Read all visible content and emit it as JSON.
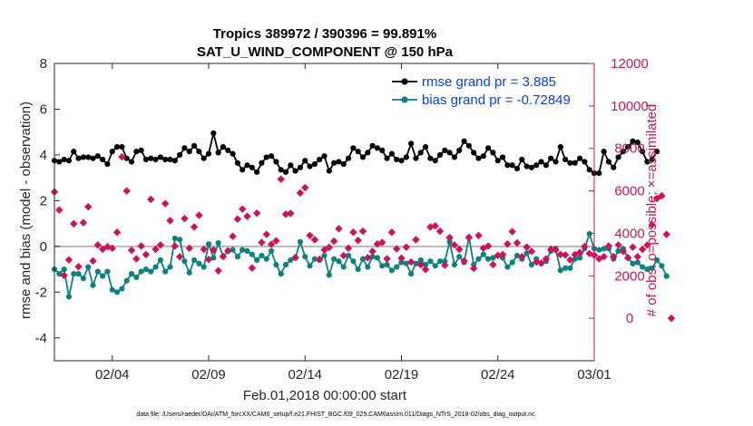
{
  "chart_data": {
    "type": "line",
    "title": "Tropics 389972 / 390396 = 99.891%",
    "subtitle": "SAT_U_WIND_COMPONENT @ 150 hPa",
    "xlabel": "Feb.01,2018 00:00:00 start",
    "ylabel_left": "rmse and bias (model - observation)",
    "ylabel_right": "# of obs: o=possible; ×=assimilated",
    "footnote": "data file: /Users/raeder/DAI/ATM_forcXX/CAM6_setup/f.e21.FHIST_BGC.f09_025.CAM6assim.011/Diags_NTrS_2018-02/obs_diag_output.nc",
    "x_range": [
      1.0,
      29.0
    ],
    "ylim_left": [
      -5,
      8
    ],
    "ylim_right": [
      -2000,
      12000
    ],
    "x_ticks": [
      {
        "value": 4,
        "label": "02/04"
      },
      {
        "value": 9,
        "label": "02/09"
      },
      {
        "value": 14,
        "label": "02/14"
      },
      {
        "value": 19,
        "label": "02/19"
      },
      {
        "value": 24,
        "label": "02/24"
      },
      {
        "value": 29,
        "label": "03/01"
      }
    ],
    "y_ticks_left": [
      8,
      6,
      4,
      2,
      0,
      -2,
      -4
    ],
    "y_ticks_right": [
      12000,
      10000,
      8000,
      6000,
      4000,
      2000,
      0
    ],
    "legend": [
      {
        "label": "rmse grand pr = 3.885",
        "color": "#000000",
        "marker": "circle"
      },
      {
        "label": "bias grand pr = -0.72849",
        "color": "#0d8080",
        "marker": "circle"
      }
    ],
    "series": [
      {
        "name": "rmse",
        "axis": "left",
        "color": "#000000",
        "marker": "circle",
        "x_start": 1.0,
        "x_step": 0.25,
        "values": [
          3.75,
          3.7,
          3.8,
          3.75,
          4.15,
          3.85,
          3.9,
          3.9,
          3.85,
          3.95,
          3.8,
          3.6,
          4.15,
          4.35,
          4.35,
          3.85,
          3.7,
          4.15,
          4.2,
          3.8,
          3.85,
          3.8,
          3.9,
          3.8,
          3.8,
          3.75,
          4.0,
          4.3,
          4.15,
          4.4,
          4.15,
          3.85,
          4.05,
          4.95,
          4.1,
          4.35,
          4.2,
          4.05,
          3.65,
          3.35,
          3.55,
          3.45,
          3.25,
          3.65,
          3.9,
          3.95,
          3.7,
          3.35,
          3.25,
          3.55,
          3.3,
          3.45,
          3.75,
          3.5,
          3.6,
          3.8,
          3.95,
          3.3,
          3.65,
          3.7,
          3.6,
          3.85,
          4.3,
          4.15,
          3.9,
          4.1,
          4.4,
          4.3,
          4.2,
          3.85,
          4.05,
          3.8,
          3.75,
          3.9,
          4.5,
          3.85,
          4.1,
          4.35,
          3.85,
          3.75,
          4.0,
          4.2,
          4.1,
          3.9,
          4.2,
          4.6,
          4.4,
          4.1,
          3.85,
          3.95,
          4.3,
          4.1,
          3.75,
          3.9,
          3.55,
          3.55,
          3.4,
          3.8,
          3.5,
          3.45,
          3.55,
          3.7,
          3.55,
          3.85,
          3.7,
          4.35,
          3.8,
          3.65,
          3.65,
          3.85,
          3.7,
          3.35,
          3.2,
          3.2,
          4.15,
          3.7,
          3.45,
          3.9,
          4.15,
          4.35,
          4.6,
          4.55,
          4.15,
          3.7,
          3.8,
          4.15
        ]
      },
      {
        "name": "bias",
        "axis": "left",
        "color": "#0d8080",
        "marker": "circle",
        "x_start": 1.0,
        "x_step": 0.25,
        "values": [
          -1.0,
          -1.2,
          -1.0,
          -2.2,
          -1.2,
          -1.2,
          -1.4,
          -0.9,
          -1.7,
          -1.1,
          -1.3,
          -1.1,
          -1.9,
          -2.0,
          -1.85,
          -1.5,
          -1.2,
          -1.35,
          -1.1,
          -1.0,
          -1.1,
          -0.9,
          -0.6,
          -1.1,
          -0.9,
          0.35,
          0.3,
          -0.65,
          -1.15,
          -0.6,
          -0.75,
          -0.9,
          0.1,
          -0.5,
          0.15,
          -0.45,
          -0.2,
          -0.15,
          -0.45,
          -0.15,
          -0.2,
          -0.35,
          -0.6,
          -0.4,
          -0.55,
          -0.2,
          -0.8,
          -1.2,
          -0.8,
          -0.6,
          -0.5,
          0.2,
          -0.45,
          -0.85,
          -0.55,
          -0.6,
          -0.4,
          -1.25,
          -0.55,
          -0.65,
          -0.9,
          -0.4,
          -0.65,
          -1.0,
          -0.55,
          -0.9,
          -0.45,
          -0.5,
          -0.85,
          -0.8,
          -1.05,
          -0.9,
          -0.7,
          -0.75,
          -1.2,
          -0.75,
          -0.6,
          -0.8,
          -0.65,
          -0.85,
          -0.65,
          -0.65,
          0.2,
          -0.8,
          -0.45,
          -0.7,
          0.4,
          -0.8,
          -0.55,
          -0.35,
          -0.55,
          -0.5,
          -0.4,
          -0.5,
          -0.9,
          -0.7,
          -0.4,
          -0.55,
          -0.3,
          -0.8,
          -0.55,
          -0.75,
          -0.65,
          -0.2,
          -0.1,
          -1.05,
          -0.95,
          -0.95,
          -0.55,
          -0.5,
          -0.1,
          0.55,
          -0.1,
          -0.15,
          -0.1,
          -0.1,
          -0.55,
          -0.2,
          -0.1,
          -0.5,
          -0.75,
          -0.7,
          -0.9,
          -1.0,
          -0.95,
          -0.6,
          -0.85,
          -1.3
        ]
      },
      {
        "name": "obs count",
        "axis": "right",
        "color": "#d0105a",
        "marker": "diamond",
        "x_start": 1.0,
        "x_step": 0.25,
        "values": [
          5950,
          5100,
          2020,
          2750,
          4450,
          2430,
          4500,
          5250,
          2700,
          3450,
          3250,
          3370,
          3300,
          4050,
          7600,
          6000,
          3200,
          2800,
          3400,
          3000,
          5600,
          3250,
          3450,
          5400,
          4600,
          3400,
          2900,
          4700,
          3300,
          4300,
          4850,
          3250,
          2770,
          3220,
          2240,
          2910,
          3180,
          3860,
          4670,
          5140,
          4800,
          2370,
          4950,
          3570,
          3950,
          3480,
          3650,
          6550,
          4900,
          4940,
          2860,
          5900,
          6150,
          3900,
          3700,
          2780,
          3220,
          3340,
          3630,
          4220,
          2950,
          3300,
          4050,
          3670,
          4100,
          2850,
          3150,
          3500,
          3570,
          2800,
          4050,
          3270,
          2830,
          3350,
          2650,
          3700,
          2520,
          2300,
          4300,
          4350,
          4100,
          2500,
          3800,
          3450,
          3250,
          2700,
          3800,
          2350,
          3900,
          3300,
          3400,
          2530,
          2960,
          3000,
          3500,
          4080,
          3550,
          2900,
          3350,
          3150,
          2650,
          2600,
          2800,
          3250,
          3220,
          3000,
          2980,
          2750,
          3000,
          3100,
          3380,
          3050,
          2970,
          2800,
          2900,
          3400,
          2900,
          3450,
          3150,
          2850,
          3350,
          2900,
          3250,
          3450,
          4400,
          5640,
          5770,
          3950,
          0
        ]
      }
    ]
  }
}
